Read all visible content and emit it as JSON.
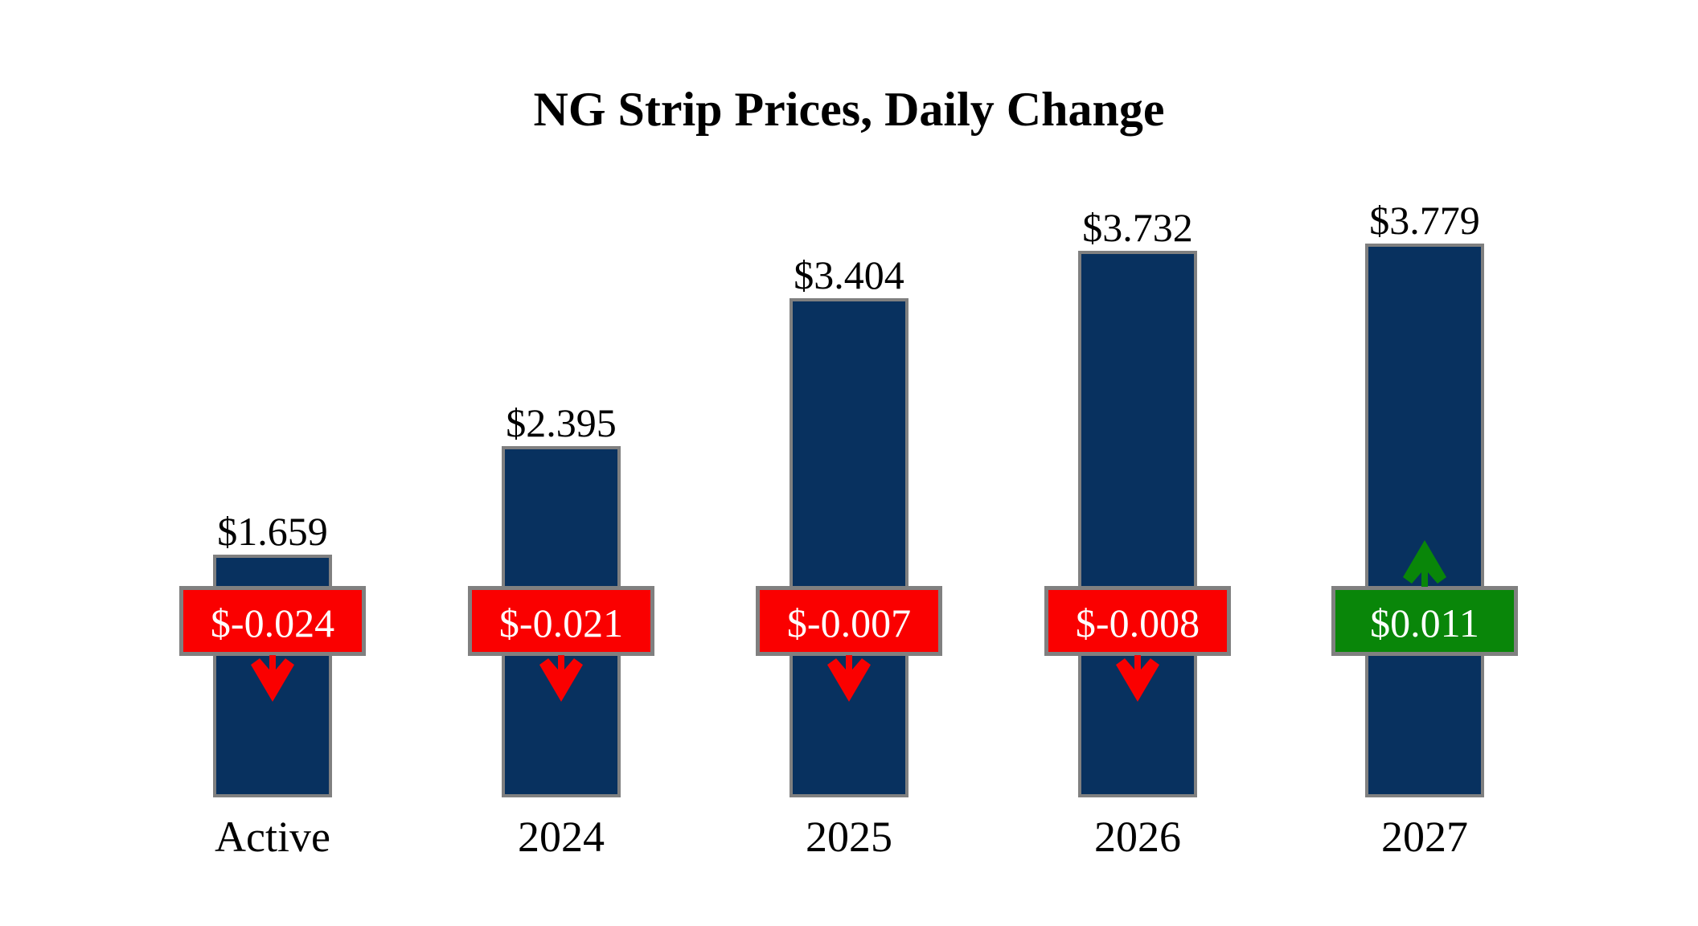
{
  "title": "NG Strip Prices, Daily Change",
  "colors": {
    "bar_fill": "#08315F",
    "bar_border": "#808080",
    "negative_badge": "#FA0000",
    "positive_badge": "#098609",
    "badge_border": "#808080",
    "badge_text": "#FFFFFF",
    "label_text": "#000000",
    "background": "#FFFFFF"
  },
  "chart_data": {
    "type": "bar",
    "title": "NG Strip Prices, Daily Change",
    "categories": [
      "Active",
      "2024",
      "2025",
      "2026",
      "2027"
    ],
    "series": [
      {
        "name": "strip_price",
        "values": [
          1.659,
          2.395,
          3.404,
          3.732,
          3.779
        ]
      },
      {
        "name": "daily_change",
        "values": [
          -0.024,
          -0.021,
          -0.007,
          -0.008,
          0.011
        ]
      }
    ],
    "bars": [
      {
        "category": "Active",
        "price": 1.659,
        "price_label": "$1.659",
        "change": -0.024,
        "change_label": "$-0.024",
        "direction": "down"
      },
      {
        "category": "2024",
        "price": 2.395,
        "price_label": "$2.395",
        "change": -0.021,
        "change_label": "$-0.021",
        "direction": "down"
      },
      {
        "category": "2025",
        "price": 3.404,
        "price_label": "$3.404",
        "change": -0.007,
        "change_label": "$-0.007",
        "direction": "down"
      },
      {
        "category": "2026",
        "price": 3.732,
        "price_label": "$3.732",
        "change": -0.008,
        "change_label": "$-0.008",
        "direction": "down"
      },
      {
        "category": "2027",
        "price": 3.779,
        "price_label": "$3.779",
        "change": 0.011,
        "change_label": "$0.011",
        "direction": "up"
      }
    ],
    "ylim": [
      0,
      4.0
    ],
    "grid": false,
    "legend": false,
    "axes_visible": false
  }
}
